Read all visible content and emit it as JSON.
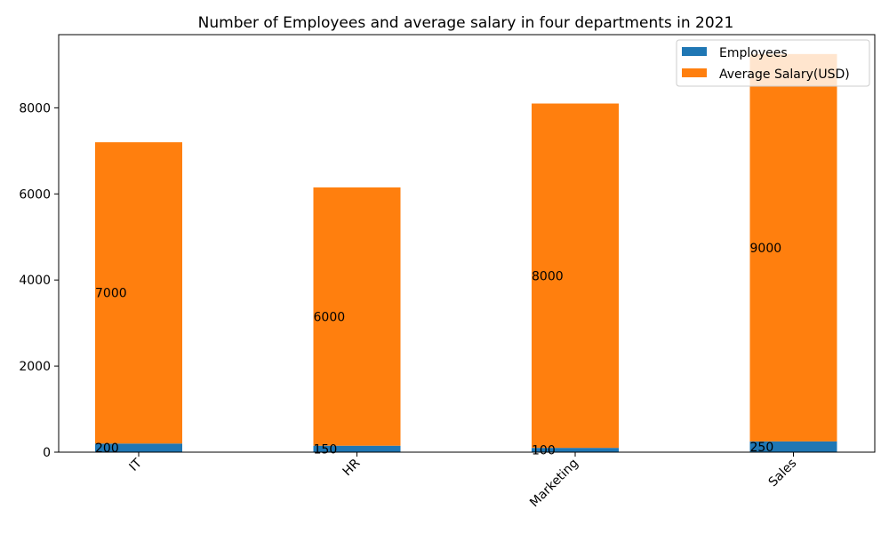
{
  "chart_data": {
    "type": "bar",
    "stacked": true,
    "title": "Number of Employees and average salary in four departments in 2021",
    "xlabel": "",
    "ylabel": "",
    "categories": [
      "IT",
      "HR",
      "Marketing",
      "Sales"
    ],
    "series": [
      {
        "name": "Employees",
        "color": "#1f77b4",
        "values": [
          200,
          150,
          100,
          250
        ]
      },
      {
        "name": "Average Salary(USD)",
        "color": "#ff7f0e",
        "values": [
          7000,
          6000,
          8000,
          9000
        ]
      }
    ],
    "ylim": [
      0,
      9700
    ],
    "yticks": [
      0,
      2000,
      4000,
      6000,
      8000
    ],
    "xtick_rotation": 45,
    "legend": "top-right",
    "grid": false
  }
}
